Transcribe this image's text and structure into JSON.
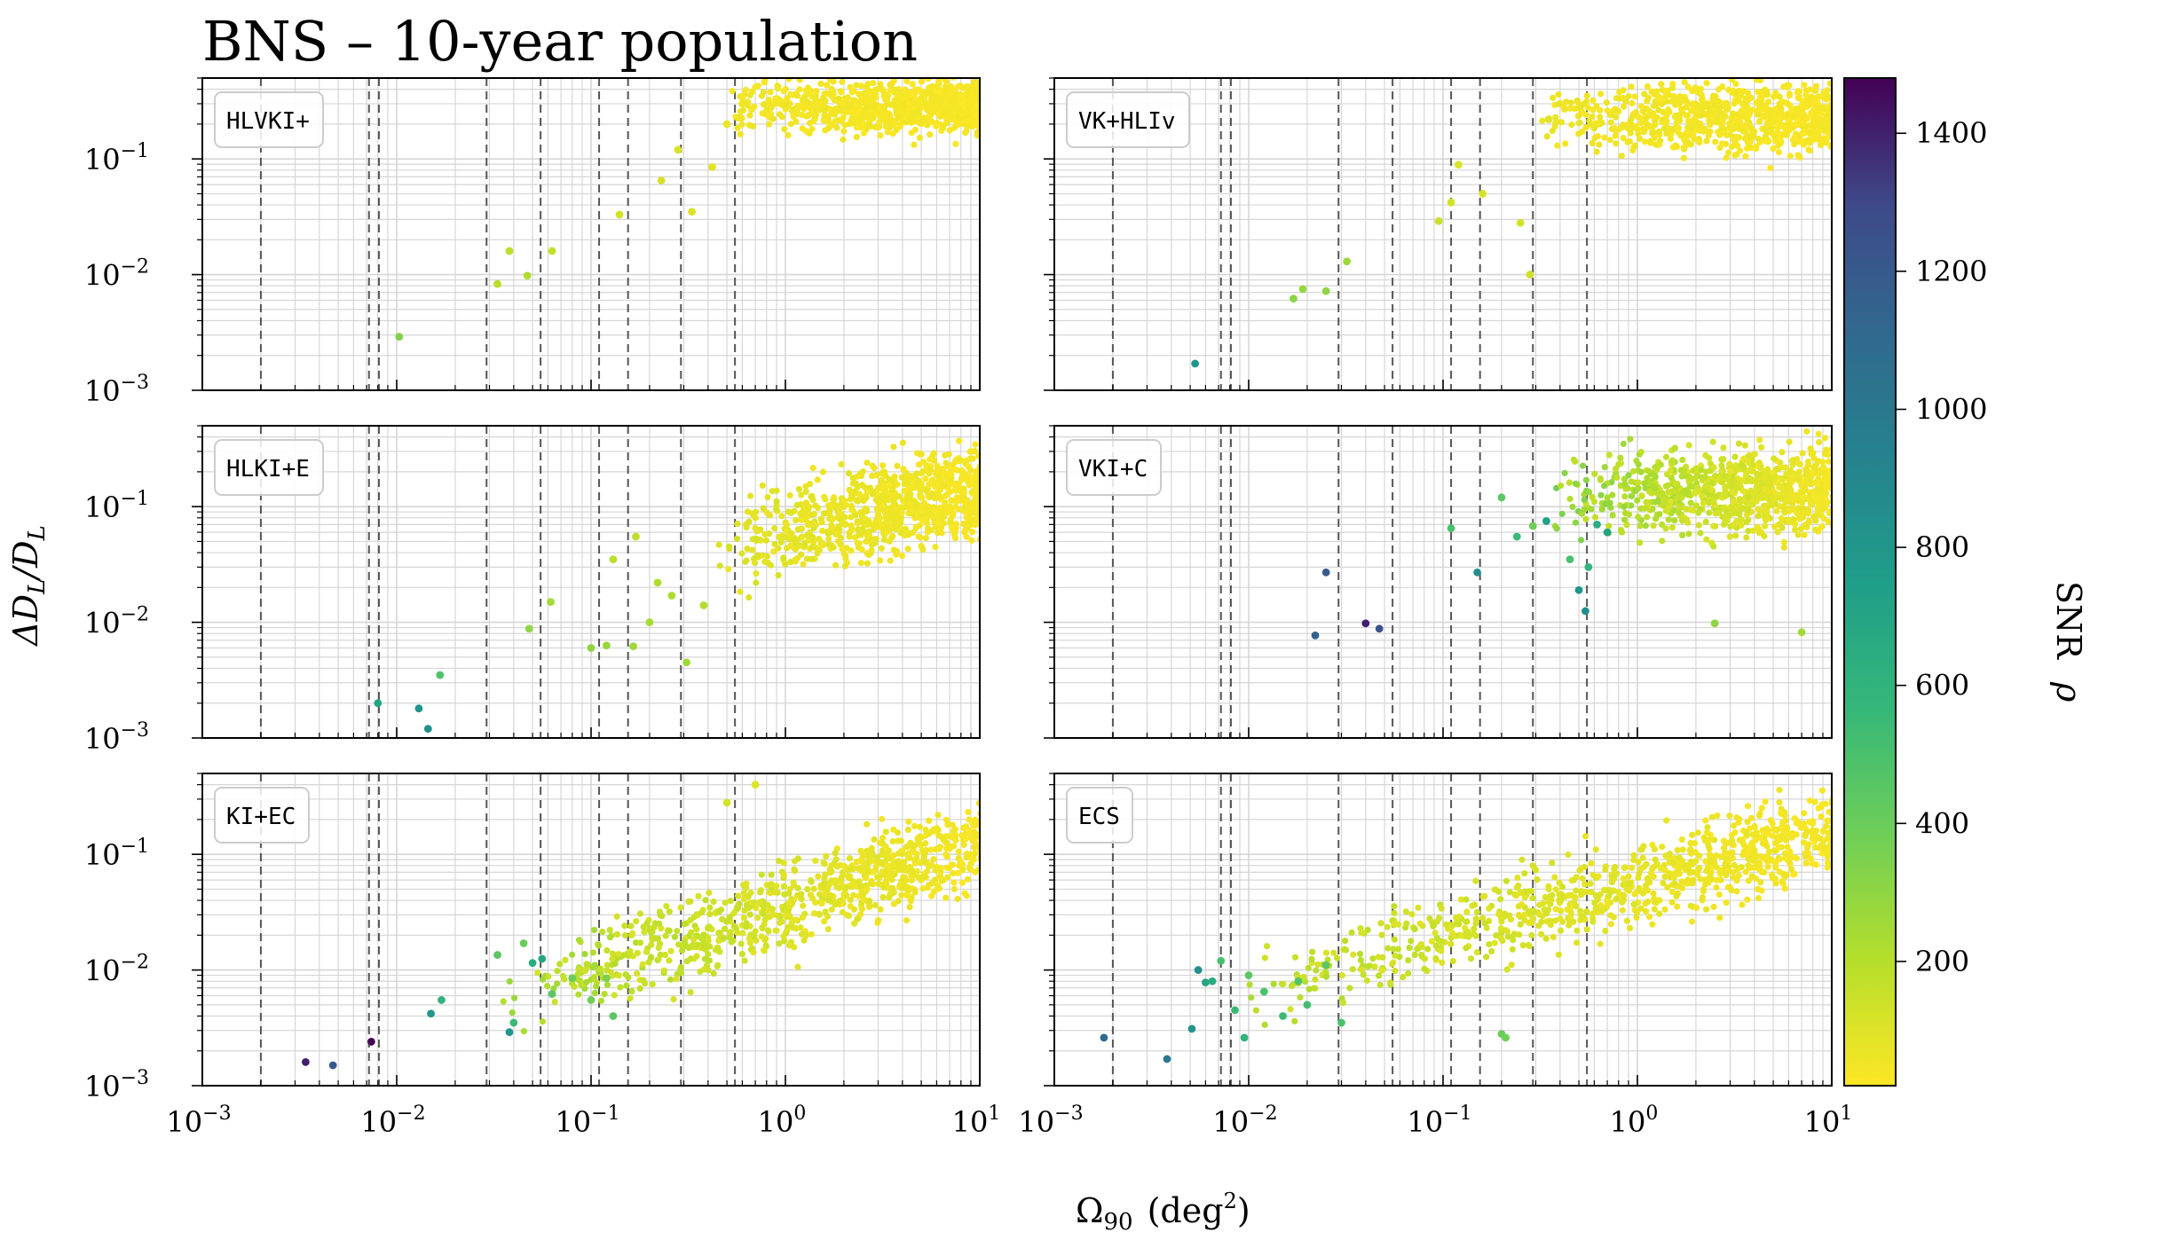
{
  "chart_data": {
    "type": "scatter",
    "title": "BNS – 10-year population",
    "xlabel": "Ω",
    "xlabel_sub": "90",
    "xlabel_units": "(deg",
    "xlabel_sup": "2",
    "xlabel_close": ")",
    "ylabel": "ΔD",
    "ylabel_sub1": "L",
    "ylabel_mid": "/D",
    "ylabel_sub2": "L",
    "x_scale": "log",
    "y_scale": "log",
    "xlim": [
      0.001,
      10
    ],
    "ylim": [
      0.001,
      0.5
    ],
    "x_tick_labels": [
      {
        "base": "10",
        "exp": "−3"
      },
      {
        "base": "10",
        "exp": "−2"
      },
      {
        "base": "10",
        "exp": "−1"
      },
      {
        "base": "10",
        "exp": "0"
      },
      {
        "base": "10",
        "exp": "1"
      }
    ],
    "y_tick_labels": [
      {
        "base": "10",
        "exp": "−3"
      },
      {
        "base": "10",
        "exp": "−2"
      },
      {
        "base": "10",
        "exp": "−1"
      }
    ],
    "vertical_reference_lines": [
      0.002,
      0.0072,
      0.0081,
      0.029,
      0.055,
      0.11,
      0.155,
      0.29,
      0.55
    ],
    "grid": true,
    "colorbar": {
      "label": "SNR",
      "symbol": "ρ",
      "colormap": "viridis",
      "min": 20,
      "max": 1480,
      "ticks": [
        "200",
        "400",
        "600",
        "800",
        "1000",
        "1200",
        "1400"
      ],
      "tick_values": [
        200,
        400,
        600,
        800,
        1000,
        1200,
        1400
      ]
    },
    "panels": [
      {
        "label": "HLVKI+",
        "bulk": {
          "xmin_log": -0.3,
          "slope": 0.0,
          "offset_log": -0.55,
          "spread": 0.22,
          "snr_scale": 20
        },
        "points": [
          [
            0.0103,
            0.0029,
            330
          ],
          [
            0.033,
            0.0083,
            200
          ],
          [
            0.038,
            0.016,
            180
          ],
          [
            0.047,
            0.0098,
            220
          ],
          [
            0.063,
            0.016,
            170
          ],
          [
            0.14,
            0.033,
            130
          ],
          [
            0.23,
            0.065,
            120
          ],
          [
            0.28,
            0.12,
            110
          ],
          [
            0.33,
            0.035,
            100
          ],
          [
            0.42,
            0.085,
            90
          ],
          [
            0.5,
            0.2,
            70
          ],
          [
            0.6,
            0.3,
            60
          ]
        ]
      },
      {
        "label": "VK+HLIv",
        "bulk": {
          "xmin_log": -0.5,
          "slope": 0.0,
          "offset_log": -0.65,
          "spread": 0.28,
          "snr_scale": 25
        },
        "points": [
          [
            0.0053,
            0.0017,
            800
          ],
          [
            0.017,
            0.0062,
            310
          ],
          [
            0.019,
            0.0075,
            280
          ],
          [
            0.025,
            0.0072,
            300
          ],
          [
            0.032,
            0.013,
            260
          ],
          [
            0.095,
            0.029,
            150
          ],
          [
            0.11,
            0.042,
            130
          ],
          [
            0.12,
            0.089,
            110
          ],
          [
            0.16,
            0.05,
            120
          ],
          [
            0.28,
            0.01,
            140
          ],
          [
            0.25,
            0.028,
            130
          ],
          [
            0.35,
            0.22,
            90
          ]
        ]
      },
      {
        "label": "HLKI+E",
        "bulk": {
          "xmin_log": -0.35,
          "slope": 0.35,
          "offset_log": -1.2,
          "spread": 0.38,
          "snr_scale": 70
        },
        "points": [
          [
            0.008,
            0.002,
            700
          ],
          [
            0.013,
            0.0018,
            800
          ],
          [
            0.0145,
            0.0012,
            850
          ],
          [
            0.0167,
            0.0035,
            480
          ],
          [
            0.048,
            0.0088,
            300
          ],
          [
            0.062,
            0.015,
            250
          ],
          [
            0.1,
            0.006,
            300
          ],
          [
            0.12,
            0.0063,
            280
          ],
          [
            0.165,
            0.0062,
            260
          ],
          [
            0.2,
            0.01,
            240
          ],
          [
            0.13,
            0.035,
            200
          ],
          [
            0.17,
            0.055,
            180
          ],
          [
            0.22,
            0.022,
            220
          ],
          [
            0.31,
            0.0045,
            260
          ],
          [
            0.26,
            0.017,
            230
          ],
          [
            0.38,
            0.014,
            210
          ]
        ]
      },
      {
        "label": "VKI+C",
        "bulk": {
          "xmin_log": -0.45,
          "slope": 0.05,
          "offset_log": -0.9,
          "spread": 0.35,
          "snr_scale": 260
        },
        "points": [
          [
            0.025,
            0.027,
            1200
          ],
          [
            0.022,
            0.0077,
            1150
          ],
          [
            0.04,
            0.0098,
            1400
          ],
          [
            0.047,
            0.0088,
            1250
          ],
          [
            0.11,
            0.065,
            500
          ],
          [
            0.15,
            0.027,
            850
          ],
          [
            0.2,
            0.12,
            450
          ],
          [
            0.24,
            0.055,
            550
          ],
          [
            0.29,
            0.068,
            380
          ],
          [
            0.34,
            0.075,
            720
          ],
          [
            0.5,
            0.019,
            800
          ],
          [
            0.54,
            0.0125,
            850
          ],
          [
            0.56,
            0.03,
            600
          ],
          [
            0.45,
            0.035,
            500
          ],
          [
            0.62,
            0.07,
            650
          ],
          [
            0.7,
            0.06,
            700
          ],
          [
            2.5,
            0.0098,
            300
          ],
          [
            7.0,
            0.0082,
            250
          ]
        ]
      },
      {
        "label": "KI+EC",
        "bulk": {
          "xmin_log": -1.5,
          "slope": 0.55,
          "offset_log": -1.45,
          "spread": 0.35,
          "snr_scale": 200
        },
        "points": [
          [
            0.0034,
            0.0016,
            1400
          ],
          [
            0.0047,
            0.0015,
            1200
          ],
          [
            0.0074,
            0.0024,
            1480
          ],
          [
            0.015,
            0.0042,
            800
          ],
          [
            0.017,
            0.0055,
            600
          ],
          [
            0.038,
            0.0029,
            800
          ],
          [
            0.04,
            0.0035,
            550
          ],
          [
            0.05,
            0.0115,
            650
          ],
          [
            0.056,
            0.0125,
            700
          ],
          [
            0.045,
            0.017,
            400
          ],
          [
            0.033,
            0.0135,
            450
          ],
          [
            0.063,
            0.0062,
            450
          ],
          [
            0.08,
            0.0085,
            400
          ],
          [
            0.1,
            0.0055,
            380
          ],
          [
            0.12,
            0.0085,
            350
          ],
          [
            0.13,
            0.004,
            450
          ],
          [
            0.5,
            0.28,
            120
          ],
          [
            0.7,
            0.4,
            100
          ]
        ]
      },
      {
        "label": "ECS",
        "bulk": {
          "xmin_log": -2.0,
          "slope": 0.45,
          "offset_log": -1.25,
          "spread": 0.35,
          "snr_scale": 150
        },
        "points": [
          [
            0.0018,
            0.0026,
            1100
          ],
          [
            0.0038,
            0.0017,
            1000
          ],
          [
            0.0051,
            0.0031,
            800
          ],
          [
            0.0055,
            0.01,
            850
          ],
          [
            0.006,
            0.0078,
            700
          ],
          [
            0.0065,
            0.008,
            650
          ],
          [
            0.0072,
            0.012,
            500
          ],
          [
            0.0085,
            0.0045,
            550
          ],
          [
            0.0095,
            0.0026,
            600
          ],
          [
            0.01,
            0.009,
            450
          ],
          [
            0.012,
            0.0065,
            500
          ],
          [
            0.015,
            0.004,
            550
          ],
          [
            0.018,
            0.008,
            480
          ],
          [
            0.02,
            0.005,
            520
          ],
          [
            0.025,
            0.011,
            450
          ],
          [
            0.03,
            0.0035,
            500
          ],
          [
            0.2,
            0.0028,
            400
          ],
          [
            0.21,
            0.0026,
            380
          ]
        ]
      }
    ]
  }
}
